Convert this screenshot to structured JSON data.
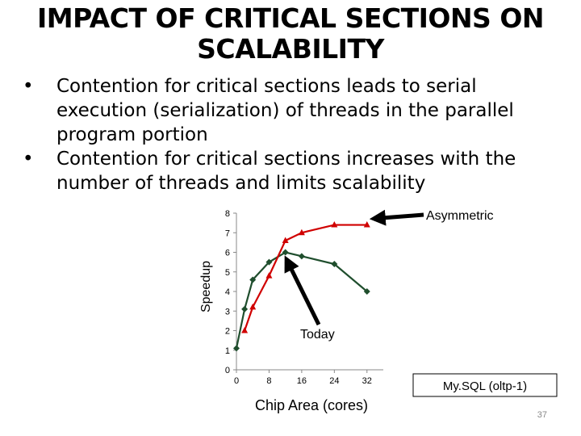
{
  "slide": {
    "title_line1": "IMPACT OF CRITICAL SECTIONS ON",
    "title_line2": "SCALABILITY",
    "bullets": [
      "Contention for critical sections leads to serial execution (serialization) of threads in the parallel program portion",
      "Contention for critical sections increases with the number of threads and limits scalability"
    ],
    "bullet_glyph": "•",
    "slide_number": "37"
  },
  "chart_data": {
    "type": "line",
    "title": "",
    "xlabel": "Chip Area (cores)",
    "ylabel": "Speedup",
    "xlim": [
      0,
      36
    ],
    "ylim": [
      0,
      8
    ],
    "x_ticks": [
      0,
      8,
      16,
      24,
      32
    ],
    "y_ticks": [
      0,
      1,
      2,
      3,
      4,
      5,
      6,
      7,
      8
    ],
    "legend_box": "My.SQL (oltp-1)",
    "series": [
      {
        "name": "Today",
        "color": "#1f4e2d",
        "marker": "diamond",
        "x": [
          0,
          2,
          4,
          8,
          12,
          16,
          24,
          32
        ],
        "y": [
          1.1,
          3.1,
          4.6,
          5.5,
          6,
          5.8,
          5.4,
          4
        ]
      },
      {
        "name": "Asymmetric",
        "color": "#d00000",
        "marker": "triangle",
        "x": [
          2,
          4,
          8,
          12,
          16,
          24,
          32
        ],
        "y": [
          2,
          3.2,
          4.8,
          6.6,
          7,
          7.4,
          7.4
        ]
      }
    ],
    "annotations": [
      {
        "text": "Asymmetric",
        "points_to": "Asymmetric"
      },
      {
        "text": "Today",
        "points_to": "Today"
      }
    ]
  }
}
